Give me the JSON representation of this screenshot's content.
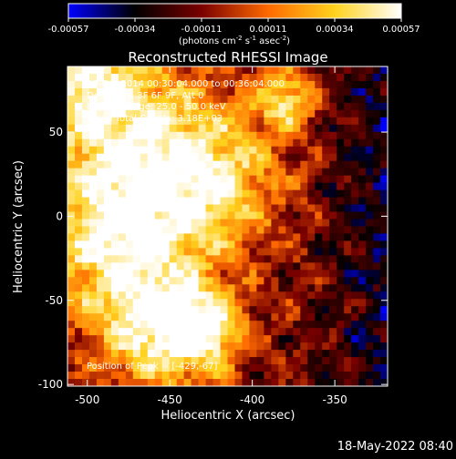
{
  "colorbar": {
    "tick_labels": [
      "-0.00057",
      "-0.00034",
      "-0.00011",
      "0.00011",
      "0.00034",
      "0.00057"
    ],
    "units_prefix": "(photons cm",
    "units_exp1": "-2",
    "units_mid": " s",
    "units_exp2": "-1",
    "units_mid2": " asec",
    "units_exp3": "-2",
    "units_suffix": ")",
    "colormap": [
      "#0000ff",
      "#000000",
      "#7a0000",
      "#ff6a00",
      "#ffd21e",
      "#ffffff"
    ],
    "range": [
      -0.00057,
      0.00057
    ]
  },
  "chart_data": {
    "type": "heatmap",
    "title": "Reconstructed RHESSI Image",
    "xlabel": "Heliocentric X (arcsec)",
    "ylabel": "Heliocentric Y (arcsec)",
    "x_ticks": [
      -500,
      -450,
      -400,
      -350
    ],
    "x_tick_labels": [
      "-500",
      "-450",
      "-400",
      "-350"
    ],
    "y_ticks": [
      -100,
      -50,
      0,
      50
    ],
    "y_tick_labels": [
      "-100",
      "-50",
      "0",
      "50"
    ],
    "xlim": [
      -512,
      -318
    ],
    "ylim": [
      -101,
      89
    ],
    "peak": [
      -429,
      -67
    ],
    "annotation_lines": [
      "19-Oct-2014 00:30:04.000 to 00:36:04.000",
      "Detectors: 3F 6F 9F, Att 0",
      "Energy Range: 25.0 - 50.0 keV",
      "Clean    Total Counts: 3.18E+03"
    ],
    "peak_label": "Position of Peak = [-429,-67]"
  },
  "footer": {
    "timestamp": "18-May-2022 08:40"
  }
}
